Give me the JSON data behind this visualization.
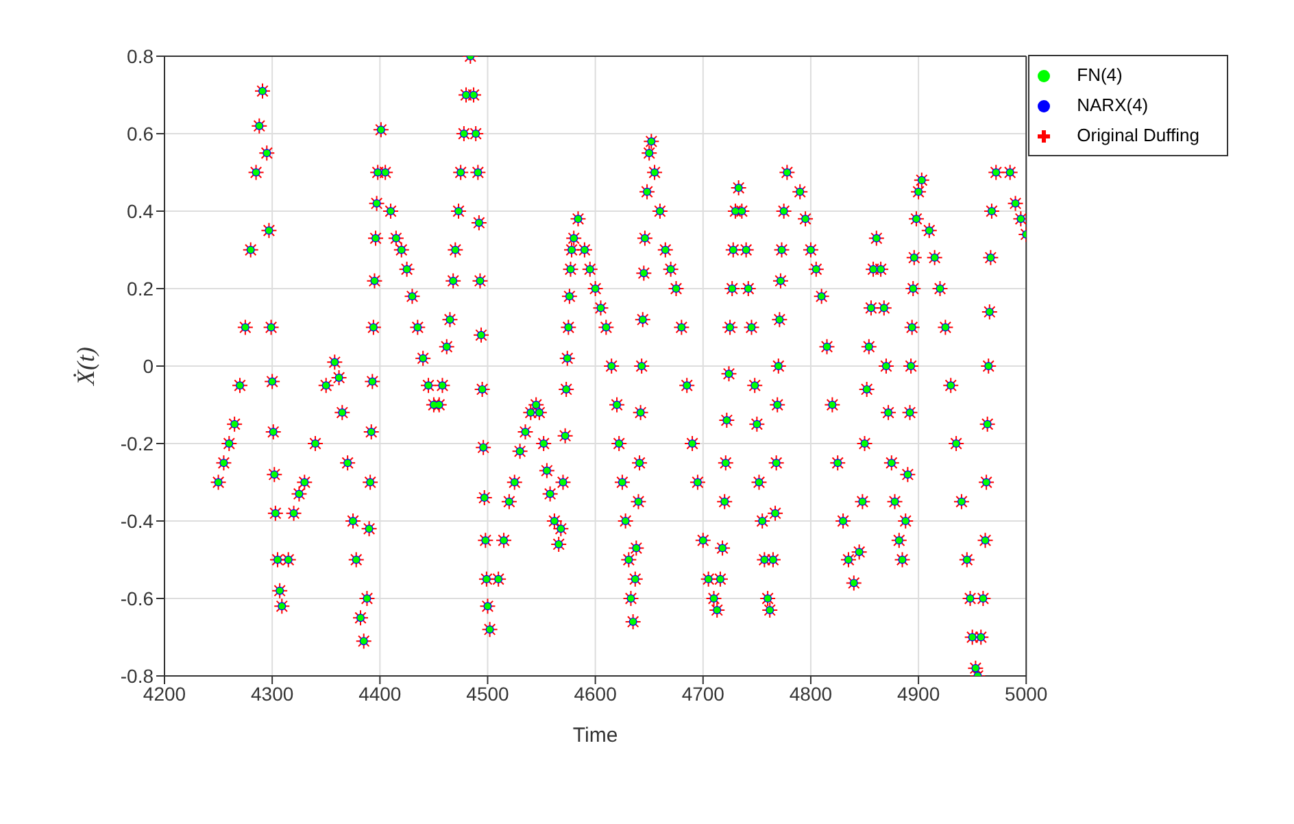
{
  "chart_data": {
    "type": "scatter",
    "xlabel": "Time",
    "ylabel": "Ẋ(t)",
    "xlim": [
      4200,
      5000
    ],
    "xticks": [
      4200,
      4300,
      4400,
      4500,
      4600,
      4700,
      4800,
      4900,
      5000
    ],
    "ylim": [
      -0.8,
      0.8
    ],
    "yticks": [
      -0.8,
      -0.6,
      -0.4,
      -0.2,
      0,
      0.2,
      0.4,
      0.6,
      0.8
    ],
    "grid": true,
    "legend": "top right",
    "x": [
      4250,
      4255,
      4260,
      4265,
      4270,
      4275,
      4280,
      4285,
      4288,
      4291,
      4295,
      4297,
      4299,
      4300,
      4301,
      4302,
      4303,
      4305,
      4307,
      4309,
      4315,
      4320,
      4325,
      4330,
      4340,
      4350,
      4358,
      4362,
      4365,
      4370,
      4375,
      4378,
      4382,
      4385,
      4388,
      4390,
      4391,
      4392,
      4393,
      4394,
      4395,
      4396,
      4397,
      4398,
      4401,
      4405,
      4410,
      4415,
      4420,
      4425,
      4430,
      4435,
      4440,
      4445,
      4450,
      4455,
      4458,
      4462,
      4465,
      4468,
      4470,
      4473,
      4475,
      4478,
      4480,
      4484,
      4487,
      4489,
      4491,
      4492,
      4493,
      4494,
      4495,
      4496,
      4497,
      4498,
      4499,
      4500,
      4502,
      4510,
      4515,
      4520,
      4525,
      4530,
      4535,
      4540,
      4545,
      4548,
      4552,
      4555,
      4558,
      4562,
      4566,
      4568,
      4570,
      4572,
      4573,
      4574,
      4575,
      4576,
      4577,
      4578,
      4580,
      4584,
      4590,
      4595,
      4600,
      4605,
      4610,
      4615,
      4620,
      4622,
      4625,
      4628,
      4631,
      4633,
      4635,
      4637,
      4638,
      4640,
      4641,
      4642,
      4643,
      4644,
      4645,
      4646,
      4648,
      4650,
      4652,
      4655,
      4660,
      4665,
      4670,
      4675,
      4680,
      4685,
      4690,
      4695,
      4700,
      4705,
      4710,
      4713,
      4716,
      4718,
      4720,
      4721,
      4722,
      4724,
      4725,
      4727,
      4728,
      4730,
      4733,
      4736,
      4740,
      4742,
      4745,
      4748,
      4750,
      4752,
      4755,
      4757,
      4760,
      4762,
      4765,
      4767,
      4768,
      4769,
      4770,
      4771,
      4772,
      4773,
      4775,
      4778,
      4790,
      4795,
      4800,
      4805,
      4810,
      4815,
      4820,
      4825,
      4830,
      4835,
      4840,
      4845,
      4848,
      4850,
      4852,
      4854,
      4856,
      4858,
      4861,
      4865,
      4868,
      4870,
      4872,
      4875,
      4878,
      4882,
      4885,
      4888,
      4890,
      4892,
      4893,
      4894,
      4895,
      4896,
      4898,
      4900,
      4903,
      4910,
      4915,
      4920,
      4925,
      4930,
      4935,
      4940,
      4945,
      4948,
      4950,
      4953,
      4955,
      4958,
      4960,
      4962,
      4963,
      4964,
      4965,
      4966,
      4967,
      4968,
      4972,
      4985,
      4990,
      4995,
      5000
    ],
    "series": [
      {
        "name": "Original Duffing",
        "color": "#ff0000",
        "marker": "cross",
        "values": [
          -0.3,
          -0.25,
          -0.2,
          -0.15,
          -0.05,
          0.1,
          0.3,
          0.5,
          0.62,
          0.71,
          0.55,
          0.35,
          0.1,
          -0.04,
          -0.17,
          -0.28,
          -0.38,
          -0.5,
          -0.58,
          -0.62,
          -0.5,
          -0.38,
          -0.33,
          -0.3,
          -0.2,
          -0.05,
          0.01,
          -0.03,
          -0.12,
          -0.25,
          -0.4,
          -0.5,
          -0.65,
          -0.71,
          -0.6,
          -0.42,
          -0.3,
          -0.17,
          -0.04,
          0.1,
          0.22,
          0.33,
          0.42,
          0.5,
          0.61,
          0.5,
          0.4,
          0.33,
          0.3,
          0.25,
          0.18,
          0.1,
          0.02,
          -0.05,
          -0.1,
          -0.1,
          -0.05,
          0.05,
          0.12,
          0.22,
          0.3,
          0.4,
          0.5,
          0.6,
          0.7,
          0.8,
          0.7,
          0.6,
          0.5,
          0.37,
          0.22,
          0.08,
          -0.06,
          -0.21,
          -0.34,
          -0.45,
          -0.55,
          -0.62,
          -0.68,
          -0.55,
          -0.45,
          -0.35,
          -0.3,
          -0.22,
          -0.17,
          -0.12,
          -0.1,
          -0.12,
          -0.2,
          -0.27,
          -0.33,
          -0.4,
          -0.46,
          -0.42,
          -0.3,
          -0.18,
          -0.06,
          0.02,
          0.1,
          0.18,
          0.25,
          0.3,
          0.33,
          0.38,
          0.3,
          0.25,
          0.2,
          0.15,
          0.1,
          0,
          -0.1,
          -0.2,
          -0.3,
          -0.4,
          -0.5,
          -0.6,
          -0.66,
          -0.55,
          -0.47,
          -0.35,
          -0.25,
          -0.12,
          0,
          0.12,
          0.24,
          0.33,
          0.45,
          0.55,
          0.58,
          0.5,
          0.4,
          0.3,
          0.25,
          0.2,
          0.1,
          -0.05,
          -0.2,
          -0.3,
          -0.45,
          -0.55,
          -0.6,
          -0.63,
          -0.55,
          -0.47,
          -0.35,
          -0.25,
          -0.14,
          -0.02,
          0.1,
          0.2,
          0.3,
          0.4,
          0.46,
          0.4,
          0.3,
          0.2,
          0.1,
          -0.05,
          -0.15,
          -0.3,
          -0.4,
          -0.5,
          -0.6,
          -0.63,
          -0.5,
          -0.38,
          -0.25,
          -0.1,
          0,
          0.12,
          0.22,
          0.3,
          0.4,
          0.5,
          0.45,
          0.38,
          0.3,
          0.25,
          0.18,
          0.05,
          -0.1,
          -0.25,
          -0.4,
          -0.5,
          -0.56,
          -0.48,
          -0.35,
          -0.2,
          -0.06,
          0.05,
          0.15,
          0.25,
          0.33,
          0.25,
          0.15,
          0,
          -0.12,
          -0.25,
          -0.35,
          -0.45,
          -0.5,
          -0.4,
          -0.28,
          -0.12,
          0,
          0.1,
          0.2,
          0.28,
          0.38,
          0.45,
          0.48,
          0.35,
          0.28,
          0.2,
          0.1,
          -0.05,
          -0.2,
          -0.35,
          -0.5,
          -0.6,
          -0.7,
          -0.78,
          -0.8,
          -0.7,
          -0.6,
          -0.45,
          -0.3,
          -0.15,
          0,
          0.14,
          0.28,
          0.4,
          0.5,
          0.5,
          0.42,
          0.38,
          0.34
        ]
      },
      {
        "name": "NARX(4)",
        "color": "#0000ff",
        "marker": "circle",
        "values": [
          -0.3,
          -0.25,
          -0.2,
          -0.15,
          -0.05,
          0.1,
          0.3,
          0.5,
          0.62,
          0.71,
          0.55,
          0.35,
          0.1,
          -0.04,
          -0.17,
          -0.28,
          -0.38,
          -0.5,
          -0.58,
          -0.62,
          -0.5,
          -0.38,
          -0.33,
          -0.3,
          -0.2,
          -0.05,
          0.01,
          -0.03,
          -0.12,
          -0.25,
          -0.4,
          -0.5,
          -0.65,
          -0.71,
          -0.6,
          -0.42,
          -0.3,
          -0.17,
          -0.04,
          0.1,
          0.22,
          0.33,
          0.42,
          0.5,
          0.61,
          0.5,
          0.4,
          0.33,
          0.3,
          0.25,
          0.18,
          0.1,
          0.02,
          -0.05,
          -0.1,
          -0.1,
          -0.05,
          0.05,
          0.12,
          0.22,
          0.3,
          0.4,
          0.5,
          0.6,
          0.7,
          0.8,
          0.7,
          0.6,
          0.5,
          0.37,
          0.22,
          0.08,
          -0.06,
          -0.21,
          -0.34,
          -0.45,
          -0.55,
          -0.62,
          -0.68,
          -0.55,
          -0.45,
          -0.35,
          -0.3,
          -0.22,
          -0.17,
          -0.12,
          -0.1,
          -0.12,
          -0.2,
          -0.27,
          -0.33,
          -0.4,
          -0.46,
          -0.42,
          -0.3,
          -0.18,
          -0.06,
          0.02,
          0.1,
          0.18,
          0.25,
          0.3,
          0.33,
          0.38,
          0.3,
          0.25,
          0.2,
          0.15,
          0.1,
          0,
          -0.1,
          -0.2,
          -0.3,
          -0.4,
          -0.5,
          -0.6,
          -0.66,
          -0.55,
          -0.47,
          -0.35,
          -0.25,
          -0.12,
          0,
          0.12,
          0.24,
          0.33,
          0.45,
          0.55,
          0.58,
          0.5,
          0.4,
          0.3,
          0.25,
          0.2,
          0.1,
          -0.05,
          -0.2,
          -0.3,
          -0.45,
          -0.55,
          -0.6,
          -0.63,
          -0.55,
          -0.47,
          -0.35,
          -0.25,
          -0.14,
          -0.02,
          0.1,
          0.2,
          0.3,
          0.4,
          0.46,
          0.4,
          0.3,
          0.2,
          0.1,
          -0.05,
          -0.15,
          -0.3,
          -0.4,
          -0.5,
          -0.6,
          -0.63,
          -0.5,
          -0.38,
          -0.25,
          -0.1,
          0,
          0.12,
          0.22,
          0.3,
          0.4,
          0.5,
          0.45,
          0.38,
          0.3,
          0.25,
          0.18,
          0.05,
          -0.1,
          -0.25,
          -0.4,
          -0.5,
          -0.56,
          -0.48,
          -0.35,
          -0.2,
          -0.06,
          0.05,
          0.15,
          0.25,
          0.33,
          0.25,
          0.15,
          0,
          -0.12,
          -0.25,
          -0.35,
          -0.45,
          -0.5,
          -0.4,
          -0.28,
          -0.12,
          0,
          0.1,
          0.2,
          0.28,
          0.38,
          0.45,
          0.48,
          0.35,
          0.28,
          0.2,
          0.1,
          -0.05,
          -0.2,
          -0.35,
          -0.5,
          -0.6,
          -0.7,
          -0.78,
          -0.8,
          -0.7,
          -0.6,
          -0.45,
          -0.3,
          -0.15,
          0,
          0.14,
          0.28,
          0.4,
          0.5,
          0.5,
          0.42,
          0.38,
          0.34
        ]
      },
      {
        "name": "FN(4)",
        "color": "#00ff00",
        "marker": "circle",
        "values": [
          -0.3,
          -0.25,
          -0.2,
          -0.15,
          -0.05,
          0.1,
          0.3,
          0.5,
          0.62,
          0.71,
          0.55,
          0.35,
          0.1,
          -0.04,
          -0.17,
          -0.28,
          -0.38,
          -0.5,
          -0.58,
          -0.62,
          -0.5,
          -0.38,
          -0.33,
          -0.3,
          -0.2,
          -0.05,
          0.01,
          -0.03,
          -0.12,
          -0.25,
          -0.4,
          -0.5,
          -0.65,
          -0.71,
          -0.6,
          -0.42,
          -0.3,
          -0.17,
          -0.04,
          0.1,
          0.22,
          0.33,
          0.42,
          0.5,
          0.61,
          0.5,
          0.4,
          0.33,
          0.3,
          0.25,
          0.18,
          0.1,
          0.02,
          -0.05,
          -0.1,
          -0.1,
          -0.05,
          0.05,
          0.12,
          0.22,
          0.3,
          0.4,
          0.5,
          0.6,
          0.7,
          0.8,
          0.7,
          0.6,
          0.5,
          0.37,
          0.22,
          0.08,
          -0.06,
          -0.21,
          -0.34,
          -0.45,
          -0.55,
          -0.62,
          -0.68,
          -0.55,
          -0.45,
          -0.35,
          -0.3,
          -0.22,
          -0.17,
          -0.12,
          -0.1,
          -0.12,
          -0.2,
          -0.27,
          -0.33,
          -0.4,
          -0.46,
          -0.42,
          -0.3,
          -0.18,
          -0.06,
          0.02,
          0.1,
          0.18,
          0.25,
          0.3,
          0.33,
          0.38,
          0.3,
          0.25,
          0.2,
          0.15,
          0.1,
          0,
          -0.1,
          -0.2,
          -0.3,
          -0.4,
          -0.5,
          -0.6,
          -0.66,
          -0.55,
          -0.47,
          -0.35,
          -0.25,
          -0.12,
          0,
          0.12,
          0.24,
          0.33,
          0.45,
          0.55,
          0.58,
          0.5,
          0.4,
          0.3,
          0.25,
          0.2,
          0.1,
          -0.05,
          -0.2,
          -0.3,
          -0.45,
          -0.55,
          -0.6,
          -0.63,
          -0.55,
          -0.47,
          -0.35,
          -0.25,
          -0.14,
          -0.02,
          0.1,
          0.2,
          0.3,
          0.4,
          0.46,
          0.4,
          0.3,
          0.2,
          0.1,
          -0.05,
          -0.15,
          -0.3,
          -0.4,
          -0.5,
          -0.6,
          -0.63,
          -0.5,
          -0.38,
          -0.25,
          -0.1,
          0,
          0.12,
          0.22,
          0.3,
          0.4,
          0.5,
          0.45,
          0.38,
          0.3,
          0.25,
          0.18,
          0.05,
          -0.1,
          -0.25,
          -0.4,
          -0.5,
          -0.56,
          -0.48,
          -0.35,
          -0.2,
          -0.06,
          0.05,
          0.15,
          0.25,
          0.33,
          0.25,
          0.15,
          0,
          -0.12,
          -0.25,
          -0.35,
          -0.45,
          -0.5,
          -0.4,
          -0.28,
          -0.12,
          0,
          0.1,
          0.2,
          0.28,
          0.38,
          0.45,
          0.48,
          0.35,
          0.28,
          0.2,
          0.1,
          -0.05,
          -0.2,
          -0.35,
          -0.5,
          -0.6,
          -0.7,
          -0.78,
          -0.8,
          -0.7,
          -0.6,
          -0.45,
          -0.3,
          -0.15,
          0,
          0.14,
          0.28,
          0.4,
          0.5,
          0.5,
          0.42,
          0.38,
          0.34
        ]
      }
    ]
  }
}
